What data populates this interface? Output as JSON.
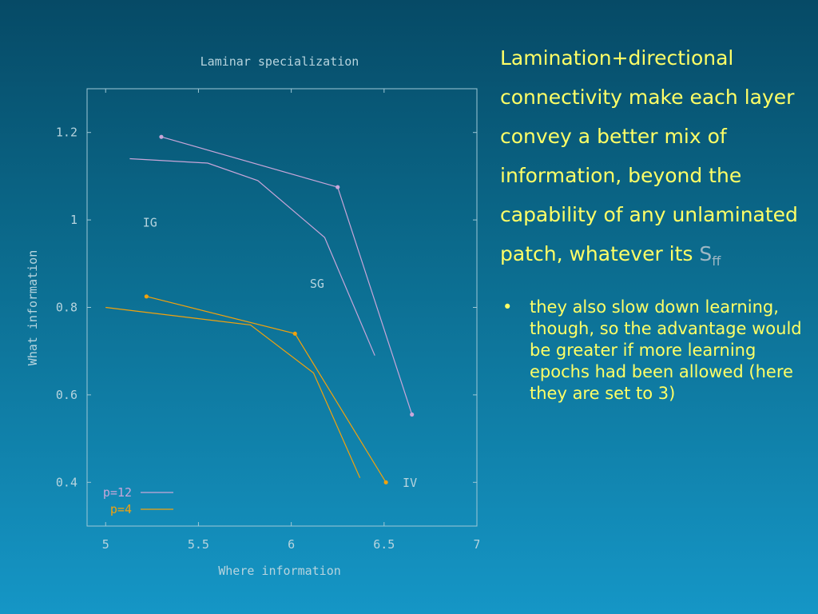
{
  "colors": {
    "axis": "#9ec8d6",
    "text": "#b7d4de",
    "series_p12": "#c9a6d9",
    "series_p4": "#f2a20c",
    "highlight": "#ffff66"
  },
  "chart_data": {
    "type": "line",
    "title": "Laminar specialization",
    "xlabel": "Where information",
    "ylabel": "What information",
    "xlim": [
      4.9,
      7
    ],
    "ylim": [
      0.3,
      1.3
    ],
    "xticks": [
      5,
      5.5,
      6,
      6.5,
      7
    ],
    "xtick_labels": [
      "5",
      "5.5",
      "6",
      "6.5",
      "7"
    ],
    "yticks": [
      0.4,
      0.6,
      0.8,
      1.0,
      1.2
    ],
    "ytick_labels": [
      "0.4",
      "0.6",
      "0.8",
      "1",
      "1.2"
    ],
    "grid": false,
    "legend_position": "bottom-left",
    "series": [
      {
        "name": "p=12",
        "color_key": "series_p12",
        "lines": [
          {
            "points": [
              [
                5.3,
                1.19
              ],
              [
                6.25,
                1.075
              ],
              [
                6.65,
                0.555
              ]
            ],
            "markers": true
          },
          {
            "points": [
              [
                5.13,
                1.14
              ],
              [
                5.55,
                1.13
              ],
              [
                5.82,
                1.09
              ],
              [
                6.18,
                0.96
              ],
              [
                6.45,
                0.69
              ]
            ],
            "markers": false
          }
        ]
      },
      {
        "name": "p=4",
        "color_key": "series_p4",
        "lines": [
          {
            "points": [
              [
                5.22,
                0.825
              ],
              [
                6.02,
                0.74
              ],
              [
                6.51,
                0.4
              ]
            ],
            "markers": true
          },
          {
            "points": [
              [
                5.0,
                0.8
              ],
              [
                5.78,
                0.76
              ],
              [
                6.12,
                0.65
              ],
              [
                6.37,
                0.41
              ]
            ],
            "markers": false
          }
        ]
      }
    ],
    "annotations": [
      {
        "text": "IG",
        "x": 5.2,
        "y": 0.985
      },
      {
        "text": "SG",
        "x": 6.1,
        "y": 0.845
      },
      {
        "text": "IV",
        "x": 6.6,
        "y": 0.39
      }
    ]
  },
  "side_text": {
    "main_text": "Lamination+directional connectivity make each layer convey a better mix of information, beyond the capability of any unlaminated patch, whatever its ",
    "symbol": "S",
    "subscript": "ff",
    "bullets": [
      {
        "marker": "•",
        "text": "they also slow down learning, though, so the advantage would be greater if more learning epochs had been allowed (here they are set to 3)"
      }
    ]
  }
}
